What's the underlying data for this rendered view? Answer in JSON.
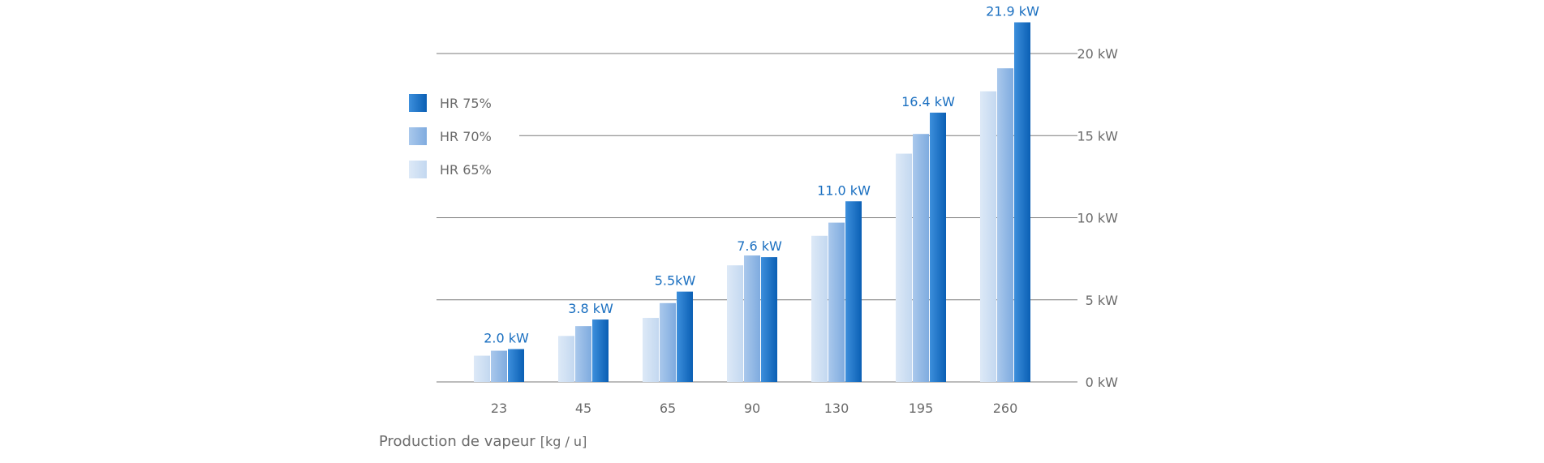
{
  "chart_data": {
    "type": "bar",
    "categories": [
      "23",
      "45",
      "65",
      "90",
      "130",
      "195",
      "260"
    ],
    "series": [
      {
        "name": "HR 65%",
        "values": [
          1.6,
          2.8,
          3.9,
          7.1,
          8.9,
          13.9,
          17.7
        ],
        "color_light": "#dde9f7",
        "color_dark": "#c3d8f0"
      },
      {
        "name": "HR 70%",
        "values": [
          1.9,
          3.4,
          4.8,
          7.7,
          9.7,
          15.1,
          19.1
        ],
        "color_light": "#a9c8ec",
        "color_dark": "#7fabdf"
      },
      {
        "name": "HR 75%",
        "values": [
          2.0,
          3.8,
          5.5,
          7.6,
          11.0,
          16.4,
          21.9
        ],
        "color_light": "#3d8fdc",
        "color_dark": "#0a5fb4"
      }
    ],
    "data_labels": [
      "2.0 kW",
      "3.8 kW",
      "5.5kW",
      "7.6 kW",
      "11.0 kW",
      "16.4 kW",
      "21.9 kW"
    ],
    "yticks": [
      0,
      5,
      10,
      15,
      20
    ],
    "ytick_labels": [
      "0 kW",
      "5 kW",
      "10 kW",
      "15 kW",
      "20 kW"
    ],
    "ylim": [
      0,
      22
    ],
    "xlabel": "Production de vapeur",
    "xlabel_unit": "[kg / u]",
    "grid": true,
    "legend_position": "left"
  },
  "colors": {
    "label_blue": "#1a6fc0",
    "grid": "#7a7a7a",
    "text": "#6b6b6b"
  }
}
